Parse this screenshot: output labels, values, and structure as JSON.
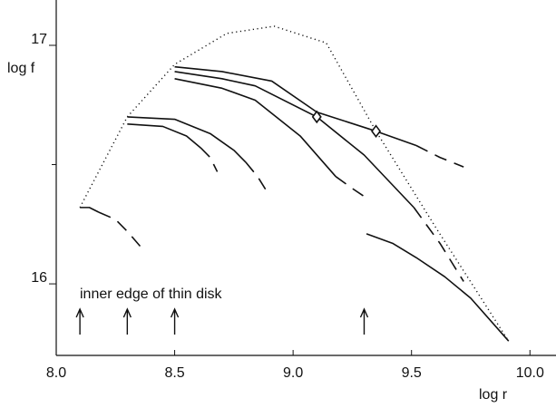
{
  "chart_data": {
    "type": "line",
    "x_label": "log r",
    "y_label": "log f",
    "annotation": "inner edge of thin disk",
    "xlim": [
      8.0,
      10.11
    ],
    "ylim": [
      15.7,
      17.19
    ],
    "xticks": [
      {
        "value": 8.0,
        "label": "8.0"
      },
      8.5,
      {
        "value": 9.0,
        "label": "9.0"
      },
      9.5,
      {
        "value": 10.0,
        "label": "10.0"
      }
    ],
    "yticks": [
      16,
      17
    ],
    "yminor_ticks": [
      16.5
    ],
    "color": "#111111",
    "series": [
      {
        "style": "dotted",
        "x": [
          8.1,
          8.3,
          8.5,
          8.72,
          8.92,
          9.14,
          9.35,
          9.6,
          9.91
        ],
        "values": [
          16.32,
          16.7,
          16.92,
          17.05,
          17.08,
          17.01,
          16.64,
          16.24,
          15.76
        ]
      },
      {
        "style": "solid",
        "x": [
          8.1,
          8.14,
          8.18
        ],
        "values": [
          16.32,
          16.32,
          16.3
        ]
      },
      {
        "style": "dashed",
        "x": [
          8.18,
          8.25,
          8.3,
          8.37
        ],
        "values": [
          16.3,
          16.27,
          16.22,
          16.14
        ]
      },
      {
        "style": "solid",
        "x": [
          8.3,
          8.5,
          8.65,
          8.75,
          8.8
        ],
        "values": [
          16.7,
          16.69,
          16.63,
          16.56,
          16.51
        ]
      },
      {
        "style": "dashed",
        "x": [
          8.8,
          8.85,
          8.9
        ],
        "values": [
          16.51,
          16.45,
          16.37
        ]
      },
      {
        "style": "solid",
        "x": [
          8.3,
          8.45,
          8.55,
          8.61
        ],
        "values": [
          16.67,
          16.66,
          16.62,
          16.57
        ]
      },
      {
        "style": "dashed",
        "x": [
          8.61,
          8.65,
          8.68
        ],
        "values": [
          16.57,
          16.53,
          16.47
        ]
      },
      {
        "style": "solid",
        "x": [
          8.5,
          8.7,
          8.91,
          9.1,
          9.35,
          9.52
        ],
        "values": [
          16.91,
          16.89,
          16.85,
          16.72,
          16.64,
          16.58
        ]
      },
      {
        "style": "dashed",
        "x": [
          9.52,
          9.62,
          9.72
        ],
        "values": [
          16.58,
          16.53,
          16.49
        ]
      },
      {
        "style": "solid",
        "x": [
          8.5,
          8.7,
          8.84,
          9.1,
          9.3,
          9.51
        ],
        "values": [
          16.89,
          16.86,
          16.83,
          16.7,
          16.54,
          16.32
        ]
      },
      {
        "style": "dashed",
        "x": [
          9.51,
          9.62,
          9.72
        ],
        "values": [
          16.32,
          16.17,
          16.01
        ]
      },
      {
        "style": "solid",
        "x": [
          8.5,
          8.7,
          8.84,
          9.03,
          9.18
        ],
        "values": [
          16.86,
          16.82,
          16.77,
          16.62,
          16.45
        ]
      },
      {
        "style": "dashed",
        "x": [
          9.18,
          9.25,
          9.31
        ],
        "values": [
          16.45,
          16.4,
          16.36
        ]
      },
      {
        "style": "solid",
        "x": [
          9.31,
          9.42,
          9.52,
          9.64,
          9.75,
          9.91
        ],
        "values": [
          16.21,
          16.17,
          16.11,
          16.03,
          15.94,
          15.76
        ]
      }
    ],
    "markers": {
      "x": [
        9.1,
        9.35
      ],
      "y": [
        16.7,
        16.64
      ]
    },
    "arrows_x": [
      8.1,
      8.3,
      8.5,
      9.3
    ]
  }
}
